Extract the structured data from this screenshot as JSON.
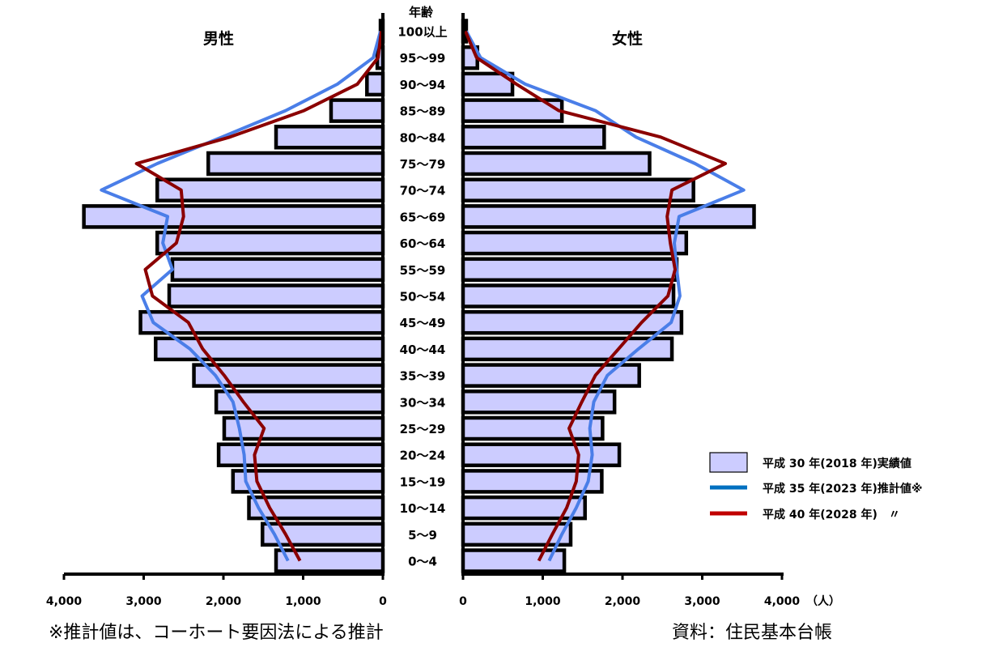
{
  "chart_data": {
    "type": "bar",
    "subtype": "population-pyramid",
    "categories": [
      "0～4",
      "5～9",
      "10～14",
      "15～19",
      "20～24",
      "25～29",
      "30～34",
      "35～39",
      "40～44",
      "45～49",
      "50～54",
      "55～59",
      "60～64",
      "65～69",
      "70～74",
      "75～79",
      "80～84",
      "85～89",
      "90～94",
      "95～99",
      "100以上"
    ],
    "category_label": "年齢",
    "left_title": "男性",
    "right_title": "女性",
    "unit": "（人）",
    "xlim": [
      0,
      4000
    ],
    "x_ticks": [
      0,
      1000,
      2000,
      3000,
      4000
    ],
    "x_tick_labels": [
      "0",
      "1,000",
      "2,000",
      "3,000",
      "4,000"
    ],
    "series": [
      {
        "name": "平成 30 年(2018 年)実績値",
        "kind": "bar",
        "color": "#ccccff",
        "male": [
          1340,
          1510,
          1680,
          1880,
          2060,
          1990,
          2090,
          2370,
          2850,
          3040,
          2680,
          2640,
          2830,
          3750,
          2830,
          2190,
          1340,
          650,
          200,
          70,
          30
        ],
        "female": [
          1270,
          1350,
          1530,
          1740,
          1960,
          1750,
          1900,
          2210,
          2620,
          2740,
          2640,
          2680,
          2800,
          3650,
          2890,
          2340,
          1770,
          1240,
          620,
          180,
          40
        ]
      },
      {
        "name": "平成 35 年(2023 年)推計値※",
        "kind": "line",
        "color": "#4a7ee8",
        "male": [
          1190,
          1360,
          1560,
          1720,
          1740,
          1800,
          1880,
          2100,
          2420,
          2880,
          3020,
          2640,
          2760,
          2700,
          3530,
          2830,
          2020,
          1220,
          570,
          120,
          30
        ],
        "female": [
          1080,
          1240,
          1420,
          1570,
          1620,
          1590,
          1640,
          1810,
          2200,
          2610,
          2720,
          2680,
          2650,
          2710,
          3520,
          2910,
          2170,
          1660,
          780,
          220,
          40
        ]
      },
      {
        "name": "平成 40 年(2028 年)　〃",
        "kind": "line",
        "color": "#8b0000",
        "male": [
          1040,
          1220,
          1420,
          1580,
          1610,
          1490,
          1750,
          1990,
          2260,
          2440,
          2890,
          2980,
          2590,
          2500,
          2530,
          3090,
          1920,
          990,
          320,
          60,
          20
        ],
        "female": [
          950,
          1120,
          1300,
          1420,
          1450,
          1330,
          1490,
          1660,
          1950,
          2240,
          2570,
          2660,
          2600,
          2560,
          2620,
          3290,
          2480,
          1200,
          670,
          170,
          30
        ]
      }
    ],
    "legend_position": "bottom-right"
  },
  "notes": {
    "left": "※推計値は、コーホート要因法による推計",
    "right": "資料：住民基本台帳"
  }
}
